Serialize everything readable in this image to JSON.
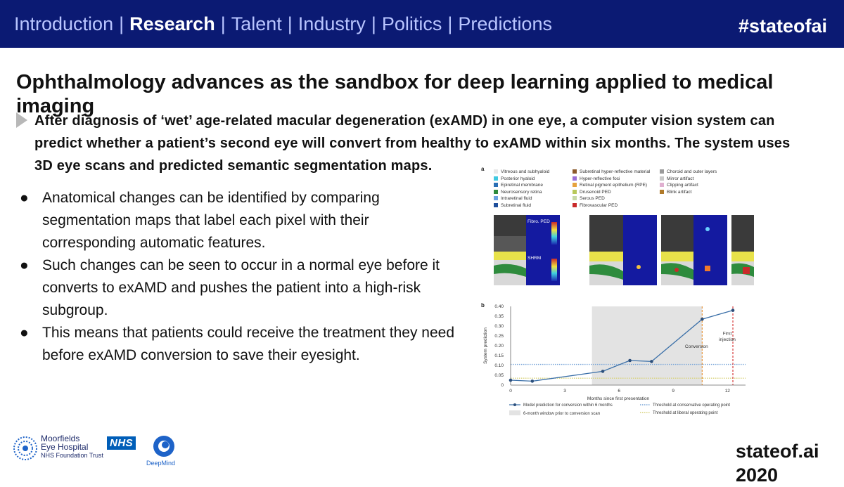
{
  "nav": {
    "items": [
      "Introduction",
      "Research",
      "Talent",
      "Industry",
      "Politics",
      "Predictions"
    ],
    "active": "Research",
    "separator": "|"
  },
  "hashtag": "#stateofai",
  "title": "Ophthalmology advances as the sandbox for deep learning applied to medical imaging",
  "lead": {
    "line1": "After diagnosis of ‘wet’ age-related macular degeneration (exAMD) in one eye, a computer vision system can",
    "line2": "predict whether a patient’s second eye will convert from healthy to exAMD within six months. The system uses",
    "line3": "3D eye scans and predicted semantic segmentation maps."
  },
  "bullets": [
    "Anatomical changes can be identified by comparing segmentation maps that label each pixel with their corresponding automatic features.",
    "Such changes can be seen to occur in a normal eye before it converts to exAMD and pushes the patient into a high-risk subgroup.",
    "This means that patients could receive the treatment they need before exAMD conversion to save their eyesight."
  ],
  "bullet_marker": "●",
  "figure": {
    "panel_a_label": "a",
    "panel_b_label": "b",
    "legend_columns": [
      [
        {
          "label": "Vitreous and subhyaloid",
          "color": "#e8e8e8"
        },
        {
          "label": "Posterior hyaloid",
          "color": "#3fc9e0"
        },
        {
          "label": "Epiretinal membrane",
          "color": "#2a6fb5"
        },
        {
          "label": "Neurosensory retina",
          "color": "#2e8b3d"
        },
        {
          "label": "Intraretinal fluid",
          "color": "#6aa2e0"
        },
        {
          "label": "Subretinal fluid",
          "color": "#1f4f9c"
        }
      ],
      [
        {
          "label": "Subretinal hyper-reflective material",
          "color": "#8b5a2b"
        },
        {
          "label": "Hyper-reflective foci",
          "color": "#9a6fd6"
        },
        {
          "label": "Retinal pigment epithelium (RPE)",
          "color": "#e6a23c"
        },
        {
          "label": "Drusenoid PED",
          "color": "#b8c85a"
        },
        {
          "label": "Serous PED",
          "color": "#c7d9a6"
        },
        {
          "label": "Fibrovascular PED",
          "color": "#c92a2a"
        }
      ],
      [
        {
          "label": "Choroid and outer layers",
          "color": "#9a9a9a"
        },
        {
          "label": "Mirror artifact",
          "color": "#c8c8c8"
        },
        {
          "label": "Clipping artifact",
          "color": "#e0b0d0"
        },
        {
          "label": "Blink artifact",
          "color": "#b07a2a"
        }
      ]
    ],
    "scan_labels": {
      "fibro": "Fibro. PED",
      "shrm": "SHRM",
      "scale_top": "0.1 mm",
      "scale_bottom": "0 mm"
    }
  },
  "chart_data": {
    "type": "line",
    "xlabel": "Months since first presentation",
    "ylabel": "System prediction",
    "x_ticks": [
      "0",
      "3",
      "6",
      "9",
      "12"
    ],
    "y_ticks": [
      "0",
      "0.05",
      "0.10",
      "0.15",
      "0.20",
      "0.25",
      "0.30",
      "0.35",
      "0.40"
    ],
    "xlim": [
      0,
      13
    ],
    "ylim": [
      0,
      0.4
    ],
    "series": [
      {
        "name": "Model prediction for conversion within 6 months",
        "x": [
          0,
          1.2,
          5.1,
          6.6,
          7.8,
          10.6,
          12.3
        ],
        "y": [
          0.025,
          0.02,
          0.07,
          0.125,
          0.12,
          0.335,
          0.38
        ],
        "color": "#3a6fa8"
      }
    ],
    "thresholds": [
      {
        "name": "Threshold at conservative operating point",
        "y": 0.105,
        "color": "#7aa6d8"
      },
      {
        "name": "Threshold at liberal operating point",
        "y": 0.035,
        "color": "#d8d27a"
      }
    ],
    "shaded_window": {
      "name": "6-month window prior to conversion scan",
      "x_start": 4.5,
      "x_end": 10.6
    },
    "events": [
      {
        "label": "Conversion",
        "x": 10.6,
        "color": "#e8953a"
      },
      {
        "label": "First injection",
        "x": 12.3,
        "color": "#d63a3a"
      }
    ]
  },
  "logos": {
    "moorfields_line1": "Moorfields",
    "moorfields_line2": "Eye Hospital",
    "moorfields_line3": "NHS Foundation Trust",
    "nhs": "NHS",
    "deepmind": "DeepMind"
  },
  "footer_brand": "stateof.ai 2020"
}
